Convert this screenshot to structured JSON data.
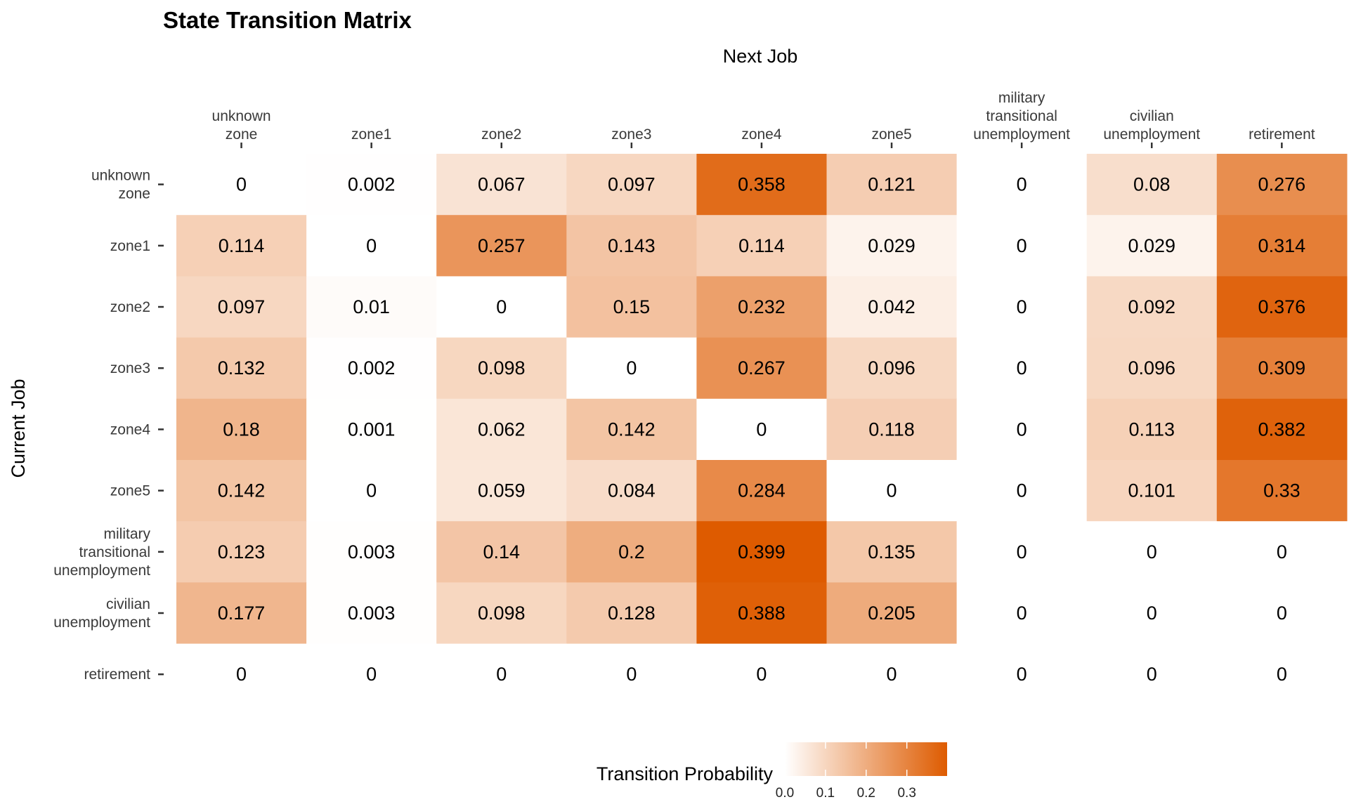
{
  "chart_data": {
    "type": "heatmap",
    "title": "State Transition Matrix",
    "xlabel": "Next Job",
    "ylabel": "Current Job",
    "x_position": "top",
    "x_categories": [
      "unknown\nzone",
      "zone1",
      "zone2",
      "zone3",
      "zone4",
      "zone5",
      "military\ntransitional\nunemployment",
      "civilian\nunemployment",
      "retirement"
    ],
    "y_categories": [
      "unknown\nzone",
      "zone1",
      "zone2",
      "zone3",
      "zone4",
      "zone5",
      "military\ntransitional\nunemployment",
      "civilian\nunemployment",
      "retirement"
    ],
    "values": [
      [
        0,
        0.002,
        0.067,
        0.097,
        0.358,
        0.121,
        0,
        0.08,
        0.276
      ],
      [
        0.114,
        0,
        0.257,
        0.143,
        0.114,
        0.029,
        0,
        0.029,
        0.314
      ],
      [
        0.097,
        0.01,
        0,
        0.15,
        0.232,
        0.042,
        0,
        0.092,
        0.376
      ],
      [
        0.132,
        0.002,
        0.098,
        0,
        0.267,
        0.096,
        0,
        0.096,
        0.309
      ],
      [
        0.18,
        0.001,
        0.062,
        0.142,
        0,
        0.118,
        0,
        0.113,
        0.382
      ],
      [
        0.142,
        0,
        0.059,
        0.084,
        0.284,
        0,
        0,
        0.101,
        0.33
      ],
      [
        0.123,
        0.003,
        0.14,
        0.2,
        0.399,
        0.135,
        0,
        0,
        0
      ],
      [
        0.177,
        0.003,
        0.098,
        0.128,
        0.388,
        0.205,
        0,
        0,
        0
      ],
      [
        0,
        0,
        0,
        0,
        0,
        0,
        0,
        0,
        0
      ]
    ],
    "value_labels": [
      [
        "0",
        "0.002",
        "0.067",
        "0.097",
        "0.358",
        "0.121",
        "0",
        "0.08",
        "0.276"
      ],
      [
        "0.114",
        "0",
        "0.257",
        "0.143",
        "0.114",
        "0.029",
        "0",
        "0.029",
        "0.314"
      ],
      [
        "0.097",
        "0.01",
        "0",
        "0.15",
        "0.232",
        "0.042",
        "0",
        "0.092",
        "0.376"
      ],
      [
        "0.132",
        "0.002",
        "0.098",
        "0",
        "0.267",
        "0.096",
        "0",
        "0.096",
        "0.309"
      ],
      [
        "0.18",
        "0.001",
        "0.062",
        "0.142",
        "0",
        "0.118",
        "0",
        "0.113",
        "0.382"
      ],
      [
        "0.142",
        "0",
        "0.059",
        "0.084",
        "0.284",
        "0",
        "0",
        "0.101",
        "0.33"
      ],
      [
        "0.123",
        "0.003",
        "0.14",
        "0.2",
        "0.399",
        "0.135",
        "0",
        "0",
        "0"
      ],
      [
        "0.177",
        "0.003",
        "0.098",
        "0.128",
        "0.388",
        "0.205",
        "0",
        "0",
        "0"
      ],
      [
        "0",
        "0",
        "0",
        "0",
        "0",
        "0",
        "0",
        "0",
        "0"
      ]
    ],
    "color_scale": {
      "low": "#ffffff",
      "high": "#de5b00",
      "min": 0,
      "max": 0.399
    },
    "legend": {
      "title": "Transition Probability",
      "position": "bottom",
      "ticks": [
        "0.0",
        "0.1",
        "0.2",
        "0.3"
      ],
      "tick_values": [
        0,
        0.1,
        0.2,
        0.3
      ]
    },
    "grid": false
  }
}
